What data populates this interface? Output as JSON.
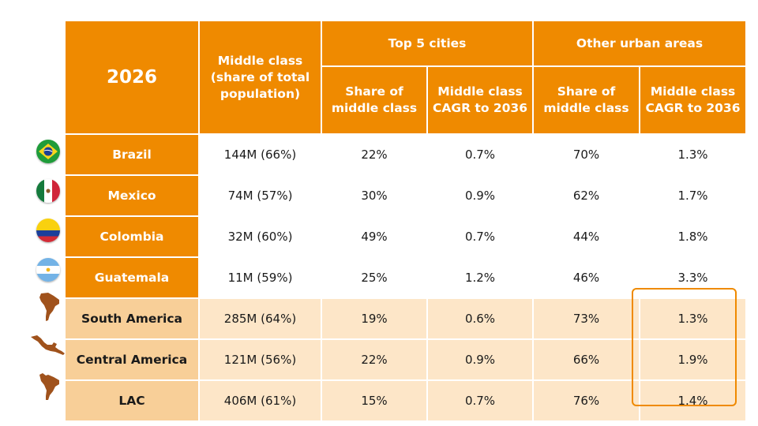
{
  "header": {
    "year": "2026",
    "middle_class": "Middle class (share of total population)",
    "group_top5": "Top 5 cities",
    "group_other": "Other urban areas",
    "share": "Share of middle class",
    "cagr": "Middle class CAGR to 2036"
  },
  "rows": [
    {
      "label": "Brazil",
      "middle_class": "144M (66%)",
      "top5_share": "22%",
      "top5_cagr": "0.7%",
      "other_share": "70%",
      "other_cagr": "1.3%",
      "icon": "brazil-flag-icon"
    },
    {
      "label": "Mexico",
      "middle_class": "74M (57%)",
      "top5_share": "30%",
      "top5_cagr": "0.9%",
      "other_share": "62%",
      "other_cagr": "1.7%",
      "icon": "mexico-flag-icon"
    },
    {
      "label": "Colombia",
      "middle_class": "32M (60%)",
      "top5_share": "49%",
      "top5_cagr": "0.7%",
      "other_share": "44%",
      "other_cagr": "1.8%",
      "icon": "colombia-flag-icon"
    },
    {
      "label": "Guatemala",
      "middle_class": "11M (59%)",
      "top5_share": "25%",
      "top5_cagr": "1.2%",
      "other_share": "46%",
      "other_cagr": "3.3%",
      "icon": "argentina-flag-icon"
    },
    {
      "label": "South America",
      "middle_class": "285M (64%)",
      "top5_share": "19%",
      "top5_cagr": "0.6%",
      "other_share": "73%",
      "other_cagr": "1.3%",
      "icon": "south-america-map-icon"
    },
    {
      "label": "Central America",
      "middle_class": "121M (56%)",
      "top5_share": "22%",
      "top5_cagr": "0.9%",
      "other_share": "66%",
      "other_cagr": "1.9%",
      "icon": "central-america-map-icon"
    },
    {
      "label": "LAC",
      "middle_class": "406M (61%)",
      "top5_share": "15%",
      "top5_cagr": "0.7%",
      "other_share": "76%",
      "other_cagr": "1.4%",
      "icon": "lac-map-icon"
    }
  ],
  "colors": {
    "header_orange": "#ef8a00",
    "region_label": "#f8cf98",
    "region_value": "#fde6c8",
    "map_brown": "#a0521c"
  }
}
